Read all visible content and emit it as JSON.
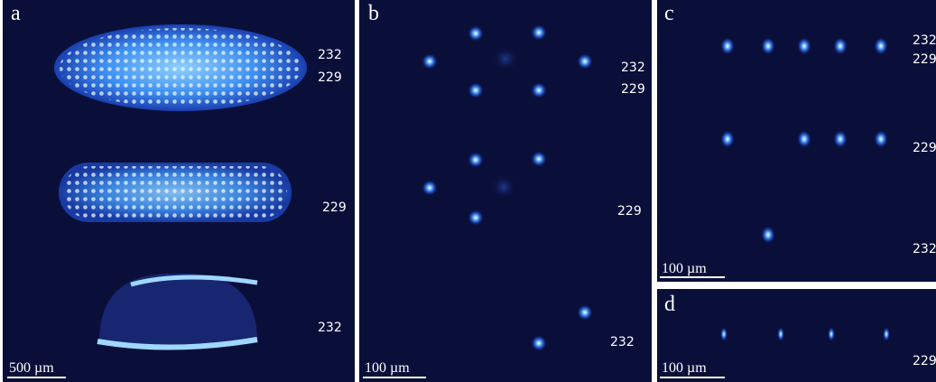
{
  "panels": [
    {
      "letter": "a",
      "labels": [
        "232",
        "229",
        "229",
        "232"
      ],
      "scale_bar": "500 µm"
    },
    {
      "letter": "b",
      "labels": [
        "232",
        "229",
        "229",
        "232"
      ],
      "scale_bar": "100 µm"
    },
    {
      "letter": "c",
      "labels": [
        "232",
        "229",
        "229",
        "232"
      ],
      "scale_bar": "100 µm"
    },
    {
      "letter": "d",
      "labels": [
        "229"
      ],
      "scale_bar": "100 µm"
    }
  ]
}
